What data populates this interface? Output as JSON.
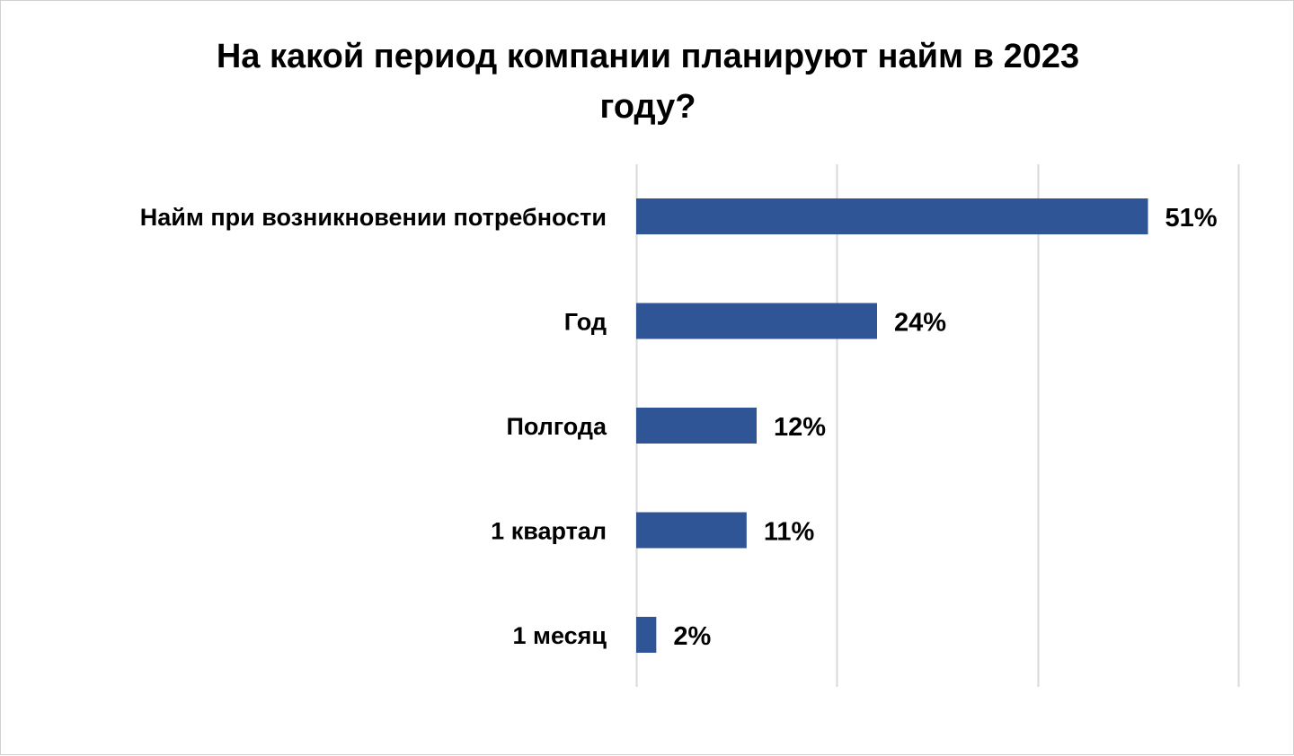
{
  "chart_data": {
    "type": "bar",
    "orientation": "horizontal",
    "title_lines": [
      "На какой период компании планируют найм в 2023",
      "году?"
    ],
    "categories": [
      "Найм при возникновении потребности",
      "Год",
      "Полгода",
      "1 квартал",
      "1 месяц"
    ],
    "values": [
      51,
      24,
      12,
      11,
      2
    ],
    "value_labels": [
      "51%",
      "24%",
      "12%",
      "11%",
      "2%"
    ],
    "xlim": [
      0,
      60
    ],
    "x_gridlines": [
      0,
      20,
      40,
      60
    ],
    "grid": true,
    "legend": "none",
    "bar_color": "#2F5597",
    "grid_color": "#D9D9D9"
  }
}
